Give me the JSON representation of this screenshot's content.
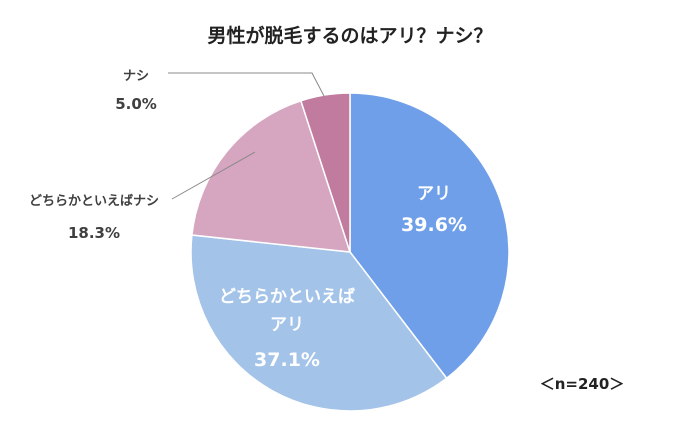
{
  "chart_data": {
    "type": "pie",
    "title": "男性が脱毛するのはアリ？ナシ？",
    "note": "＜n=240＞",
    "slices": [
      {
        "label": "アリ",
        "value": 39.6,
        "value_label": "39.6%",
        "color": "#6f9fe9"
      },
      {
        "label": "どちらかといえばアリ",
        "label_lines": [
          "どちらかといえば",
          "アリ"
        ],
        "value": 37.1,
        "value_label": "37.1%",
        "color": "#a4c3e8"
      },
      {
        "label": "どちらかといえばナシ",
        "value": 18.3,
        "value_label": "18.3%",
        "color": "#d6a6c1"
      },
      {
        "label": "ナシ",
        "value": 5.0,
        "value_label": "5.0%",
        "color": "#c17b9e"
      }
    ]
  }
}
